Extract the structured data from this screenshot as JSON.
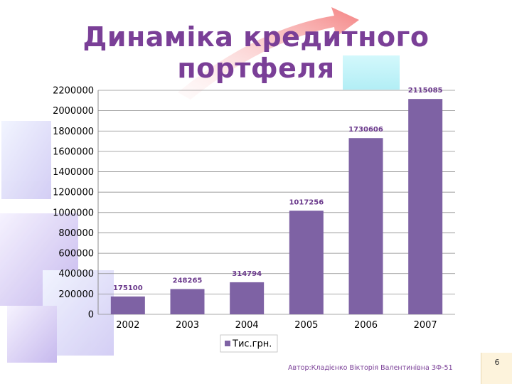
{
  "slide": {
    "title": "Динаміка кредитного портфеля",
    "footer": "Автор:Кладієнко Вікторія Валентинівна ЗФ-51",
    "page_number": "6"
  },
  "colors": {
    "title": "#7a3f97",
    "bar": "#7e62a4",
    "label": "#6b3a8c"
  },
  "chart_data": {
    "type": "bar",
    "categories": [
      "2002",
      "2003",
      "2004",
      "2005",
      "2006",
      "2007"
    ],
    "series": [
      {
        "name": "Тис.грн.",
        "values": [
          175100,
          248265,
          314794,
          1017256,
          1730606,
          2115085
        ]
      }
    ],
    "data_labels": [
      "175100",
      "248265",
      "314794",
      "1017256",
      "1730606",
      "2115085"
    ],
    "yticks": [
      0,
      200000,
      400000,
      600000,
      800000,
      1000000,
      1200000,
      1400000,
      1600000,
      1800000,
      2000000,
      2200000
    ],
    "ylim": [
      0,
      2200000
    ],
    "title": "",
    "xlabel": "",
    "ylabel": "",
    "grid": true,
    "legend_position": "bottom"
  }
}
